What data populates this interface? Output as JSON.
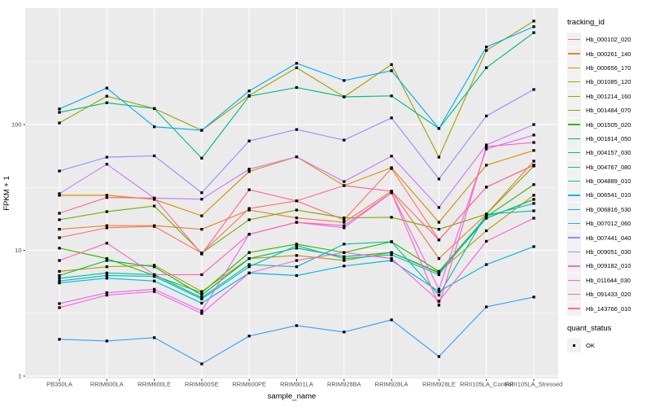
{
  "figure": {
    "panel_bg": "#EBEBEB",
    "grid_color": "#FFFFFF",
    "axis_tick_color": "#333333",
    "tick_label_color": "#4D4D4D",
    "title_color": "#000000"
  },
  "axes": {
    "x_title": "sample_name",
    "y_title": "FPKM + 1",
    "y_tick_labels": [
      "1",
      "10",
      "100"
    ]
  },
  "legend": {
    "tracking_title": "tracking_id",
    "quant_title": "quant_status",
    "quant_items": [
      {
        "label": "OK",
        "marker": "filled-square-icon",
        "color": "#000000"
      }
    ]
  },
  "chart_data": {
    "type": "line",
    "title": "",
    "xlabel": "sample_name",
    "ylabel": "FPKM + 1",
    "y_scale": "log10",
    "ylim": [
      1,
      1000
    ],
    "y_major_ticks": [
      1,
      10,
      100
    ],
    "y_minor_ticks": [
      3.1623,
      31.623,
      316.23
    ],
    "grid": true,
    "legend_position": "right",
    "marker_shape": "filled-square",
    "marker_color": "#000000",
    "categories": [
      "PB350LA",
      "RRIM600LA",
      "RRIM600LE",
      "RRIM600SE",
      "RRIM600PE",
      "RRIM901LA",
      "RRIM928BA",
      "RRIM928LA",
      "RRIM928LE",
      "RRII105LA_Control",
      "RRII105LA_Stressed"
    ],
    "series": [
      {
        "name": "Hb_000102_020",
        "color": "#F8766D",
        "values": [
          12.6,
          15.1,
          15.5,
          9.5,
          21.5,
          24.7,
          17.5,
          44.7,
          12.1,
          31.8,
          47.5
        ]
      },
      {
        "name": "Hb_000261_140",
        "color": "#EA8331",
        "values": [
          14.7,
          15.7,
          15.7,
          14.7,
          20.9,
          18.1,
          16.7,
          29.5,
          8.6,
          19.4,
          51.2
        ]
      },
      {
        "name": "Hb_000656_170",
        "color": "#D89000",
        "values": [
          27.4,
          27.4,
          25.4,
          18.8,
          42.3,
          55.4,
          32.7,
          45.4,
          16.7,
          47.5,
          62.2
        ]
      },
      {
        "name": "Hb_001085_120",
        "color": "#C09B00",
        "values": [
          6.8,
          7.4,
          7.6,
          4.7,
          8.6,
          9.1,
          8.3,
          9.6,
          6.7,
          14.3,
          27.4
        ]
      },
      {
        "name": "Hb_001214_160",
        "color": "#A3A500",
        "values": [
          103,
          168,
          134,
          90,
          170,
          283,
          166,
          300,
          55,
          388,
          665
        ]
      },
      {
        "name": "Hb_001484_070",
        "color": "#7CAE00",
        "values": [
          17.5,
          20.3,
          22.5,
          9.5,
          17.5,
          20.9,
          18.1,
          18.3,
          14.7,
          19.4,
          46.8
        ]
      },
      {
        "name": "Hb_001505_020",
        "color": "#39B600",
        "values": [
          10.4,
          8.6,
          6.3,
          4.6,
          9.6,
          11.2,
          9.6,
          11.7,
          6.8,
          18.5,
          33.3
        ]
      },
      {
        "name": "Hb_001814_050",
        "color": "#00BB4E",
        "values": [
          6.3,
          8.3,
          7.4,
          4.4,
          8.6,
          10.4,
          8.9,
          9.6,
          6.6,
          18.0,
          25.4
        ]
      },
      {
        "name": "Hb_004157_030",
        "color": "#00BF7D",
        "values": [
          125,
          149,
          134,
          54,
          168,
          197,
          166,
          169,
          93,
          283,
          538
        ]
      },
      {
        "name": "Hb_004767_080",
        "color": "#00C1A3",
        "values": [
          6.0,
          6.6,
          6.4,
          4.2,
          7.7,
          7.4,
          11.2,
          11.7,
          4.4,
          19.4,
          20.6
        ]
      },
      {
        "name": "Hb_004889_010",
        "color": "#00BFC4",
        "values": [
          5.7,
          6.3,
          6.2,
          4.1,
          7.4,
          10.9,
          8.6,
          9.2,
          6.4,
          18.8,
          23.6
        ]
      },
      {
        "name": "Hb_006541_010",
        "color": "#00BAE0",
        "values": [
          5.5,
          6.0,
          5.7,
          3.8,
          6.6,
          6.3,
          7.5,
          8.3,
          4.7,
          7.7,
          10.7
        ]
      },
      {
        "name": "Hb_006816_530",
        "color": "#00B0F6",
        "values": [
          133,
          195,
          96,
          90,
          185,
          307,
          224,
          268,
          93,
          414,
          600
        ]
      },
      {
        "name": "Hb_007012_060",
        "color": "#35A2FF",
        "values": [
          1.96,
          1.9,
          2.02,
          1.25,
          2.08,
          2.52,
          2.24,
          2.8,
          1.43,
          3.55,
          4.25
        ]
      },
      {
        "name": "Hb_007441_040",
        "color": "#9590FF",
        "values": [
          42.7,
          55,
          56.4,
          28.7,
          74,
          91.3,
          75.2,
          113,
          36.9,
          117,
          190
        ]
      },
      {
        "name": "Hb_009051_030",
        "color": "#C77CFF",
        "values": [
          28.2,
          48.4,
          26,
          25.5,
          44.2,
          55.4,
          35.2,
          56.1,
          21.9,
          68.8,
          100
        ]
      },
      {
        "name": "Hb_009182_010",
        "color": "#E76BF3",
        "values": [
          3.77,
          4.6,
          4.9,
          3.3,
          13.4,
          16.7,
          15.1,
          28.7,
          4.9,
          64,
          82.5
        ]
      },
      {
        "name": "Hb_011644_030",
        "color": "#FA62DB",
        "values": [
          3.5,
          4.4,
          4.7,
          3.15,
          6.6,
          8.3,
          9.6,
          8.6,
          3.94,
          11.8,
          18
        ]
      },
      {
        "name": "Hb_091433_020",
        "color": "#FF62BC",
        "values": [
          8.3,
          11.4,
          6.4,
          6.4,
          13.4,
          16.7,
          15.7,
          28.7,
          3.66,
          66.8,
          72
        ]
      },
      {
        "name": "Hb_143766_010",
        "color": "#FF6A98",
        "values": [
          19.7,
          26.3,
          26,
          9.35,
          30.3,
          24.7,
          32.7,
          29.5,
          12.1,
          31.8,
          47.5
        ]
      }
    ]
  }
}
